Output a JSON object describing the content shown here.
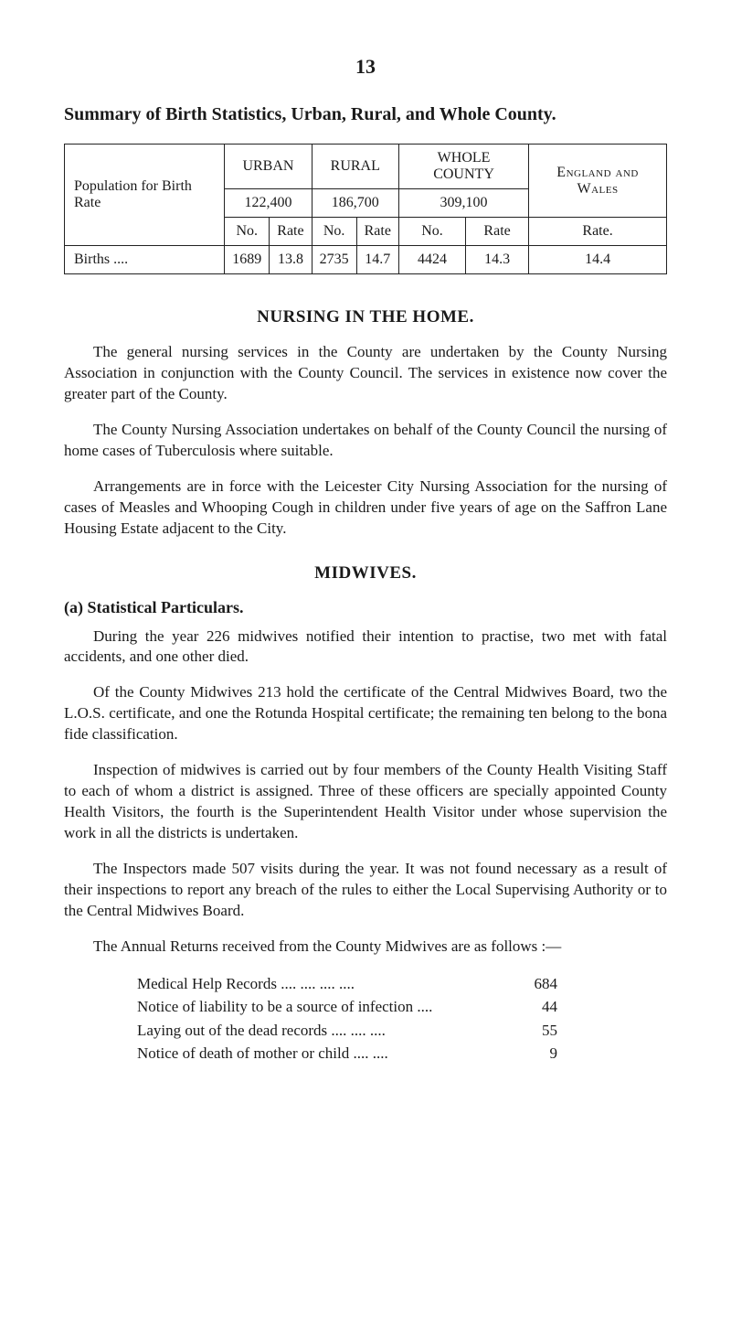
{
  "page_number": "13",
  "main_heading": "Summary of Birth Statistics, Urban, Rural, and Whole County.",
  "table": {
    "row_header_label": "Population for Birth Rate",
    "col_groups": [
      {
        "top": "URBAN",
        "pop": "122,400"
      },
      {
        "top": "RURAL",
        "pop": "186,700"
      },
      {
        "top": "WHOLE COUNTY",
        "pop": "309,100"
      }
    ],
    "eng_wales": "England and Wales",
    "sub_no": "No.",
    "sub_rate": "Rate",
    "rate_label": "Rate.",
    "data_row": {
      "label": "Births   ....",
      "cells": [
        "1689",
        "13.8",
        "2735",
        "14.7",
        "4424",
        "14.3",
        "14.4"
      ]
    }
  },
  "nursing_heading": "NURSING IN THE HOME.",
  "nursing_paras": [
    "The general nursing services in the County are undertaken by the County Nursing Association in conjunction with the County Council. The services in existence now cover the greater part of the County.",
    "The County Nursing Association undertakes on behalf of the County Council the nursing of home cases of Tuberculosis where suitable.",
    "Arrangements are in force with the Leicester City Nursing Association for the nursing of cases of Measles and Whooping Cough in children under five years of age on the Saffron Lane Housing Estate adjacent to the City."
  ],
  "midwives_heading": "MIDWIVES.",
  "stat_particulars_heading": "(a) Statistical Particulars.",
  "midwives_paras": [
    "During the year 226 midwives notified their intention to practise, two met with fatal accidents, and one other died.",
    "Of the County Midwives 213 hold the certificate of the Central Midwives Board, two the L.O.S. certificate, and one the Rotunda Hospital certificate; the remaining ten belong to the bona fide classification.",
    "Inspection of midwives is carried out by four members of the County Health Visiting Staff to each of whom a district is assigned. Three of these officers are specially appointed County Health Visitors, the fourth is the Superintendent Health Visitor under whose supervision the work in all the districts is undertaken.",
    "The Inspectors made 507 visits during the year. It was not found necessary as a result of their inspections to report any breach of the rules to either the Local Supervising Authority or to the Central Midwives Board.",
    "The Annual Returns received from the County Midwives are as follows :—"
  ],
  "returns": [
    {
      "label": "Medical Help Records   ....   ....   ....   ....",
      "value": "684"
    },
    {
      "label": "Notice of liability to be a source of infection ....",
      "value": "44"
    },
    {
      "label": "Laying out of the dead records ....   ....   ....",
      "value": "55"
    },
    {
      "label": "Notice of death of mother or child      ....   ....",
      "value": "9"
    }
  ],
  "colors": {
    "text": "#1a1a1a",
    "background": "#ffffff",
    "border": "#222222"
  },
  "typography": {
    "body_fontsize_pt": 13,
    "heading_fontsize_pt": 15,
    "pagenum_fontsize_pt": 16,
    "font_family": "Times New Roman"
  }
}
